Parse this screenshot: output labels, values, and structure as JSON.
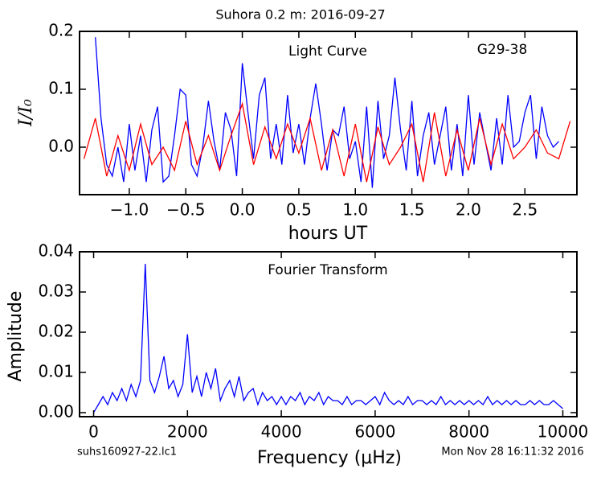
{
  "chart_data": [
    {
      "type": "line",
      "title": "Suhora 0.2 m:  2016-09-27",
      "annotations": [
        "Light Curve",
        "G29-38"
      ],
      "xlabel": "hours UT",
      "ylabel": "I/I₀",
      "xlim": [
        -1.44,
        2.96
      ],
      "ylim": [
        -0.082,
        0.2
      ],
      "xticks": [
        {
          "value": -1.0,
          "label": "−1.0"
        },
        {
          "value": -0.5,
          "label": "−0.5"
        },
        {
          "value": 0,
          "label": "0.0"
        },
        0.5,
        {
          "value": 1,
          "label": "1.0"
        },
        1.5,
        {
          "value": 2,
          "label": "2.0"
        },
        2.5
      ],
      "yticks": [
        {
          "value": 0,
          "label": "0.0"
        },
        0.1,
        0.2
      ],
      "series": [
        {
          "color": "#0000ff",
          "x": [
            -1.3,
            -1.25,
            -1.2,
            -1.15,
            -1.1,
            -1.05,
            -1.0,
            -0.95,
            -0.9,
            -0.85,
            -0.8,
            -0.75,
            -0.7,
            -0.65,
            -0.6,
            -0.55,
            -0.5,
            -0.45,
            -0.4,
            -0.35,
            -0.3,
            -0.25,
            -0.2,
            -0.15,
            -0.1,
            -0.05,
            0.0,
            0.05,
            0.1,
            0.15,
            0.2,
            0.25,
            0.3,
            0.35,
            0.4,
            0.45,
            0.5,
            0.55,
            0.6,
            0.65,
            0.7,
            0.75,
            0.8,
            0.85,
            0.9,
            0.95,
            1.0,
            1.05,
            1.1,
            1.15,
            1.2,
            1.25,
            1.3,
            1.35,
            1.4,
            1.45,
            1.5,
            1.55,
            1.6,
            1.65,
            1.7,
            1.75,
            1.8,
            1.85,
            1.9,
            1.95,
            2.0,
            2.05,
            2.1,
            2.15,
            2.2,
            2.25,
            2.3,
            2.35,
            2.4,
            2.45,
            2.5,
            2.55,
            2.6,
            2.65,
            2.7,
            2.75,
            2.8
          ],
          "values": [
            0.19,
            0.05,
            -0.03,
            -0.05,
            0.0,
            -0.06,
            0.04,
            -0.04,
            0.02,
            -0.06,
            0.03,
            0.07,
            -0.06,
            -0.05,
            0.02,
            0.1,
            0.09,
            -0.03,
            -0.05,
            0.0,
            0.08,
            0.01,
            -0.04,
            0.06,
            0.03,
            -0.05,
            0.145,
            0.06,
            -0.02,
            0.09,
            0.12,
            -0.02,
            0.04,
            -0.03,
            0.09,
            -0.01,
            0.04,
            -0.03,
            0.05,
            0.11,
            0.04,
            -0.04,
            0.03,
            0.02,
            0.07,
            -0.02,
            0.01,
            -0.06,
            0.07,
            -0.07,
            0.08,
            -0.02,
            0.02,
            0.12,
            0.03,
            -0.04,
            0.08,
            -0.05,
            0.02,
            0.06,
            -0.03,
            0.02,
            0.07,
            -0.04,
            0.04,
            -0.05,
            0.09,
            -0.03,
            0.06,
            0.01,
            -0.04,
            0.05,
            -0.03,
            0.09,
            0.0,
            0.01,
            0.06,
            0.09,
            -0.02,
            0.07,
            0.02,
            0.0,
            0.01
          ]
        },
        {
          "color": "#ff0000",
          "x": [
            -1.4,
            -1.3,
            -1.2,
            -1.1,
            -1.0,
            -0.9,
            -0.8,
            -0.7,
            -0.6,
            -0.5,
            -0.4,
            -0.3,
            -0.2,
            -0.1,
            0.0,
            0.1,
            0.2,
            0.3,
            0.4,
            0.5,
            0.6,
            0.7,
            0.8,
            0.9,
            1.0,
            1.1,
            1.2,
            1.3,
            1.4,
            1.5,
            1.6,
            1.7,
            1.8,
            1.9,
            2.0,
            2.1,
            2.2,
            2.3,
            2.4,
            2.5,
            2.6,
            2.7,
            2.8,
            2.9
          ],
          "values": [
            -0.02,
            0.05,
            -0.05,
            0.02,
            -0.04,
            0.04,
            -0.03,
            0.0,
            -0.04,
            0.045,
            -0.03,
            0.02,
            -0.04,
            0.02,
            0.075,
            -0.03,
            0.035,
            -0.02,
            0.04,
            -0.01,
            0.05,
            -0.04,
            0.03,
            -0.05,
            0.04,
            -0.06,
            0.035,
            -0.03,
            0.0,
            0.04,
            -0.06,
            0.06,
            -0.05,
            0.03,
            -0.04,
            0.05,
            -0.03,
            0.04,
            -0.02,
            0.0,
            0.03,
            -0.01,
            -0.02,
            0.045
          ]
        }
      ]
    },
    {
      "type": "line",
      "annotations": [
        "Fourier Transform"
      ],
      "xlabel": "Frequency (μHz)",
      "ylabel": "Amplitude",
      "footer": [
        "suhs160927-22.lc1",
        "Mon Nov 28 16:11:32 2016"
      ],
      "xlim": [
        -300,
        10300
      ],
      "ylim": [
        -0.001,
        0.04
      ],
      "xticks": [
        0,
        2000,
        4000,
        6000,
        8000,
        10000
      ],
      "yticks": [
        {
          "value": 0,
          "label": "0.00"
        },
        0.01,
        0.02,
        0.03,
        0.04
      ],
      "series": [
        {
          "color": "#0000ff",
          "x": [
            0,
            100,
            200,
            300,
            400,
            500,
            600,
            700,
            800,
            900,
            1000,
            1100,
            1200,
            1300,
            1400,
            1500,
            1600,
            1700,
            1800,
            1900,
            2000,
            2100,
            2200,
            2300,
            2400,
            2500,
            2600,
            2700,
            2800,
            2900,
            3000,
            3100,
            3200,
            3300,
            3400,
            3500,
            3600,
            3700,
            3800,
            3900,
            4000,
            4100,
            4200,
            4300,
            4400,
            4500,
            4600,
            4700,
            4800,
            4900,
            5000,
            5100,
            5200,
            5300,
            5400,
            5500,
            5600,
            5700,
            5800,
            5900,
            6000,
            6100,
            6200,
            6300,
            6400,
            6500,
            6600,
            6700,
            6800,
            6900,
            7000,
            7100,
            7200,
            7300,
            7400,
            7500,
            7600,
            7700,
            7800,
            7900,
            8000,
            8100,
            8200,
            8300,
            8400,
            8500,
            8600,
            8700,
            8800,
            8900,
            9000,
            9100,
            9200,
            9300,
            9400,
            9500,
            9600,
            9700,
            9800,
            9900,
            10000
          ],
          "values": [
            0.0,
            0.002,
            0.004,
            0.002,
            0.005,
            0.003,
            0.006,
            0.003,
            0.007,
            0.004,
            0.008,
            0.037,
            0.008,
            0.005,
            0.009,
            0.014,
            0.006,
            0.008,
            0.004,
            0.007,
            0.0195,
            0.005,
            0.009,
            0.004,
            0.01,
            0.006,
            0.011,
            0.003,
            0.006,
            0.008,
            0.004,
            0.009,
            0.003,
            0.005,
            0.006,
            0.002,
            0.005,
            0.003,
            0.004,
            0.002,
            0.004,
            0.002,
            0.004,
            0.003,
            0.005,
            0.002,
            0.004,
            0.003,
            0.005,
            0.002,
            0.004,
            0.003,
            0.003,
            0.002,
            0.004,
            0.002,
            0.003,
            0.003,
            0.002,
            0.003,
            0.004,
            0.002,
            0.005,
            0.003,
            0.002,
            0.003,
            0.002,
            0.004,
            0.002,
            0.003,
            0.003,
            0.002,
            0.003,
            0.002,
            0.004,
            0.002,
            0.003,
            0.002,
            0.003,
            0.002,
            0.003,
            0.002,
            0.003,
            0.002,
            0.004,
            0.002,
            0.003,
            0.002,
            0.003,
            0.002,
            0.003,
            0.002,
            0.002,
            0.003,
            0.002,
            0.003,
            0.002,
            0.002,
            0.003,
            0.002,
            0.001
          ]
        }
      ]
    }
  ]
}
